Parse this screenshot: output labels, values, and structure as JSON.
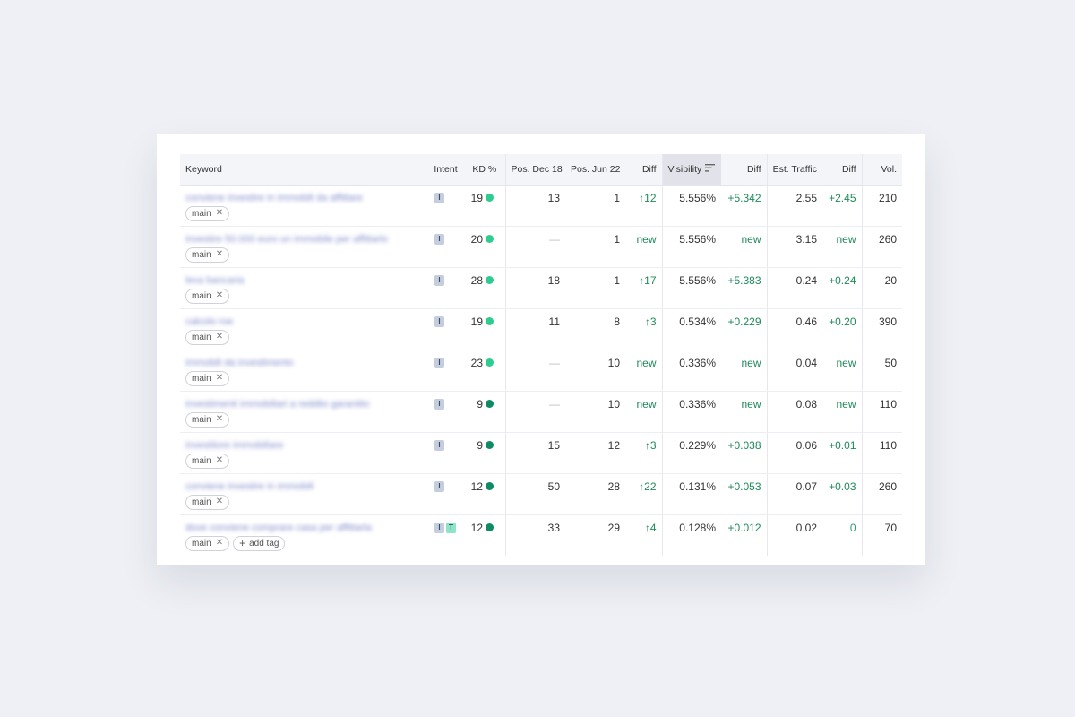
{
  "colors": {
    "page_bg": "#eef0f5",
    "positive": "#1f8a5a",
    "kd_light": "#2ecc8f",
    "kd_dark": "#0e8a64",
    "intent_i": "#c5cedf",
    "intent_t": "#8fe3c6",
    "keyword_link": "#6b78c2"
  },
  "table": {
    "headers": {
      "keyword": "Keyword",
      "intent": "Intent",
      "kd": "KD %",
      "pos_dec": "Pos. Dec 18",
      "pos_jun": "Pos. Jun 22",
      "diff_pos": "Diff",
      "visibility": "Visibility",
      "diff_vis": "Diff",
      "traffic": "Est. Traffic",
      "diff_traffic": "Diff",
      "volume": "Vol."
    },
    "sort_icon": "sort-descending-icon",
    "tag_remove_icon": "close-icon",
    "add_tag_label": "add tag",
    "rows": [
      {
        "keyword": "conviene investire in immobili da affittare",
        "tag": "main",
        "intents": [
          "I"
        ],
        "kd": "19",
        "kd_color": "light",
        "pos_dec": "13",
        "pos_jun": "1",
        "diff_pos": "↑12",
        "visibility": "5.556%",
        "diff_vis": "+5.342",
        "traffic": "2.55",
        "diff_traffic": "+2.45",
        "volume": "210"
      },
      {
        "keyword": "investire 50.000 euro un immobile per affittarlo",
        "tag": "main",
        "intents": [
          "I"
        ],
        "kd": "20",
        "kd_color": "light",
        "pos_dec": "—",
        "pos_jun": "1",
        "diff_pos": "new",
        "visibility": "5.556%",
        "diff_vis": "new",
        "traffic": "3.15",
        "diff_traffic": "new",
        "volume": "260"
      },
      {
        "keyword": "leva bancaria",
        "tag": "main",
        "intents": [
          "I"
        ],
        "kd": "28",
        "kd_color": "light",
        "pos_dec": "18",
        "pos_jun": "1",
        "diff_pos": "↑17",
        "visibility": "5.556%",
        "diff_vis": "+5.383",
        "traffic": "0.24",
        "diff_traffic": "+0.24",
        "volume": "20"
      },
      {
        "keyword": "calcolo roe",
        "tag": "main",
        "intents": [
          "I"
        ],
        "kd": "19",
        "kd_color": "light",
        "pos_dec": "11",
        "pos_jun": "8",
        "diff_pos": "↑3",
        "visibility": "0.534%",
        "diff_vis": "+0.229",
        "traffic": "0.46",
        "diff_traffic": "+0.20",
        "volume": "390"
      },
      {
        "keyword": "immobili da investimento",
        "tag": "main",
        "intents": [
          "I"
        ],
        "kd": "23",
        "kd_color": "light",
        "pos_dec": "—",
        "pos_jun": "10",
        "diff_pos": "new",
        "visibility": "0.336%",
        "diff_vis": "new",
        "traffic": "0.04",
        "diff_traffic": "new",
        "volume": "50"
      },
      {
        "keyword": "investimenti immobiliari a reddito garantito",
        "tag": "main",
        "intents": [
          "I"
        ],
        "kd": "9",
        "kd_color": "dark",
        "pos_dec": "—",
        "pos_jun": "10",
        "diff_pos": "new",
        "visibility": "0.336%",
        "diff_vis": "new",
        "traffic": "0.08",
        "diff_traffic": "new",
        "volume": "110"
      },
      {
        "keyword": "investitore immobiliare",
        "tag": "main",
        "intents": [
          "I"
        ],
        "kd": "9",
        "kd_color": "dark",
        "pos_dec": "15",
        "pos_jun": "12",
        "diff_pos": "↑3",
        "visibility": "0.229%",
        "diff_vis": "+0.038",
        "traffic": "0.06",
        "diff_traffic": "+0.01",
        "volume": "110"
      },
      {
        "keyword": "conviene investire in immobili",
        "tag": "main",
        "intents": [
          "I"
        ],
        "kd": "12",
        "kd_color": "dark",
        "pos_dec": "50",
        "pos_jun": "28",
        "diff_pos": "↑22",
        "visibility": "0.131%",
        "diff_vis": "+0.053",
        "traffic": "0.07",
        "diff_traffic": "+0.03",
        "volume": "260"
      },
      {
        "keyword": "dove conviene comprare casa per affittarla",
        "tag": "main",
        "intents": [
          "I",
          "T"
        ],
        "kd": "12",
        "kd_color": "dark",
        "pos_dec": "33",
        "pos_jun": "29",
        "diff_pos": "↑4",
        "visibility": "0.128%",
        "diff_vis": "+0.012",
        "traffic": "0.02",
        "diff_traffic": "0",
        "volume": "70",
        "show_add_tag": true
      }
    ]
  }
}
